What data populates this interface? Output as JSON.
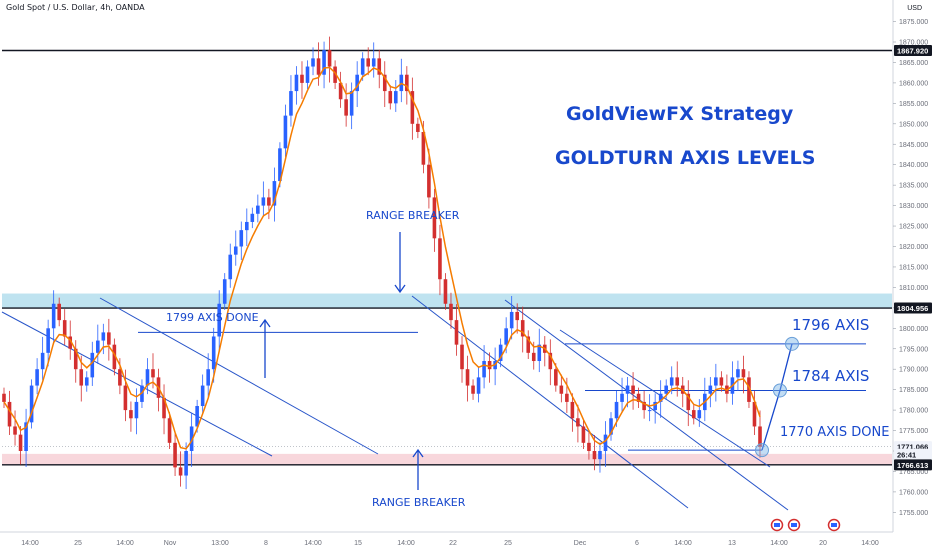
{
  "header": {
    "symbol_title": "Gold Spot / U.S. Dollar, 4h, OANDA"
  },
  "annotations": {
    "title_line1": "GoldViewFX Strategy",
    "title_line2": "GOLDTURN AXIS LEVELS",
    "range_breaker_top": "RANGE BREAKER",
    "range_breaker_bottom": "RANGE BREAKER",
    "axis_1799": "1799 AXIS DONE",
    "axis_1796": "1796 AXIS",
    "axis_1784": "1784 AXIS",
    "axis_1770": "1770 AXIS DONE"
  },
  "price_axis": {
    "currency": "USD",
    "labels": [
      "1875.000",
      "1870.000",
      "1865.000",
      "1860.000",
      "1855.000",
      "1850.000",
      "1845.000",
      "1840.000",
      "1835.000",
      "1830.000",
      "1825.000",
      "1820.000",
      "1815.000",
      "1810.000",
      "1805.000",
      "1800.000",
      "1795.000",
      "1790.000",
      "1785.000",
      "1780.000",
      "1775.000",
      "1770.000",
      "1765.000",
      "1760.000",
      "1755.000",
      "1750.000"
    ],
    "tags": [
      {
        "text": "1867.920",
        "value": 1867.92,
        "bg": "#131722",
        "fg": "#ffffff"
      },
      {
        "text": "1804.956",
        "value": 1804.956,
        "bg": "#131722",
        "fg": "#ffffff"
      },
      {
        "text": "1771.066",
        "value": 1771.066,
        "bg": "#f0f3fa",
        "fg": "#131722"
      },
      {
        "text": "26:41",
        "value": 1769.2,
        "bg": "#f0f3fa",
        "fg": "#131722"
      },
      {
        "text": "1766.613",
        "value": 1766.613,
        "bg": "#131722",
        "fg": "#ffffff"
      }
    ]
  },
  "time_axis": {
    "labels": [
      "14:00",
      "25",
      "14:00",
      "Nov",
      "13:00",
      "8",
      "14:00",
      "15",
      "14:00",
      "22",
      "25",
      "Dec",
      "6",
      "14:00",
      "13",
      "14:00",
      "20",
      "14:00"
    ]
  },
  "colors": {
    "bullish": "#2962ff",
    "bearish": "#d32f2f",
    "ema": "#f57c00",
    "annotation": "#1848cc",
    "zone_top": "#bfe3f0",
    "zone_bottom": "#f8d7dc"
  },
  "chart_data": {
    "type": "candlestick",
    "title": "Gold Spot / U.S. Dollar, 4h, OANDA",
    "y_unit": "USD",
    "ylim": [
      1748,
      1878
    ],
    "x_ticks": [
      "14:00",
      "25",
      "14:00",
      "Nov",
      "13:00",
      "8",
      "14:00",
      "15",
      "14:00",
      "22",
      "25",
      "Dec",
      "6",
      "14:00",
      "13",
      "14:00",
      "20",
      "14:00"
    ],
    "horizontal_levels": [
      1867.92,
      1804.956,
      1799,
      1796,
      1784,
      1770,
      1766.613
    ],
    "zones": [
      {
        "name": "top band",
        "from": 1804.956,
        "to": 1808.5
      },
      {
        "name": "bottom band",
        "from": 1766.613,
        "to": 1769.3
      }
    ],
    "close_path": [
      1782,
      1776,
      1774,
      1770,
      1777,
      1786,
      1790,
      1794,
      1800,
      1806,
      1802,
      1798,
      1795,
      1790,
      1786,
      1788,
      1794,
      1797,
      1799,
      1796,
      1790,
      1786,
      1780,
      1778,
      1782,
      1786,
      1790,
      1788,
      1783,
      1778,
      1772,
      1766,
      1764,
      1770,
      1776,
      1781,
      1786,
      1790,
      1798,
      1806,
      1812,
      1818,
      1820,
      1824,
      1826,
      1828,
      1830,
      1832,
      1830,
      1836,
      1844,
      1852,
      1858,
      1862,
      1860,
      1864,
      1866,
      1862,
      1868,
      1864,
      1860,
      1856,
      1852,
      1858,
      1862,
      1866,
      1864,
      1866,
      1862,
      1858,
      1855,
      1858,
      1862,
      1858,
      1850,
      1848,
      1840,
      1832,
      1822,
      1812,
      1806,
      1802,
      1796,
      1790,
      1786,
      1784,
      1788,
      1792,
      1790,
      1792,
      1796,
      1800,
      1804,
      1802,
      1798,
      1794,
      1792,
      1796,
      1794,
      1790,
      1786,
      1784,
      1782,
      1778,
      1776,
      1772,
      1770,
      1768,
      1770,
      1774,
      1778,
      1782,
      1784,
      1786,
      1784,
      1782,
      1780,
      1780,
      1782,
      1784,
      1786,
      1788,
      1786,
      1784,
      1780,
      1778,
      1780,
      1784,
      1786,
      1788,
      1786,
      1784,
      1788,
      1790,
      1788,
      1782,
      1776,
      1771.066
    ]
  }
}
